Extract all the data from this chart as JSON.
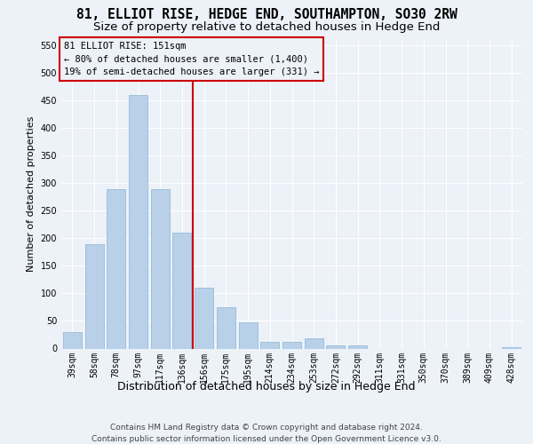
{
  "title": "81, ELLIOT RISE, HEDGE END, SOUTHAMPTON, SO30 2RW",
  "subtitle": "Size of property relative to detached houses in Hedge End",
  "xlabel": "Distribution of detached houses by size in Hedge End",
  "ylabel": "Number of detached properties",
  "categories": [
    "39sqm",
    "58sqm",
    "78sqm",
    "97sqm",
    "117sqm",
    "136sqm",
    "156sqm",
    "175sqm",
    "195sqm",
    "214sqm",
    "234sqm",
    "253sqm",
    "272sqm",
    "292sqm",
    "311sqm",
    "331sqm",
    "350sqm",
    "370sqm",
    "389sqm",
    "409sqm",
    "428sqm"
  ],
  "values": [
    30,
    190,
    290,
    460,
    290,
    210,
    110,
    75,
    47,
    12,
    12,
    18,
    5,
    5,
    0,
    0,
    0,
    0,
    0,
    0,
    2
  ],
  "bar_color": "#b8d0e8",
  "bar_edgecolor": "#89b4d4",
  "vline_x_index": 6,
  "vline_color": "#cc0000",
  "annotation_line0": "81 ELLIOT RISE: 151sqm",
  "annotation_line1": "← 80% of detached houses are smaller (1,400)",
  "annotation_line2": "19% of semi-detached houses are larger (331) →",
  "annotation_box_edgecolor": "#cc0000",
  "ylim": [
    0,
    560
  ],
  "yticks": [
    0,
    50,
    100,
    150,
    200,
    250,
    300,
    350,
    400,
    450,
    500,
    550
  ],
  "footer_line1": "Contains HM Land Registry data © Crown copyright and database right 2024.",
  "footer_line2": "Contains public sector information licensed under the Open Government Licence v3.0.",
  "bg_color": "#edf1f8",
  "grid_color": "#ffffff",
  "title_fontsize": 10.5,
  "subtitle_fontsize": 9.5,
  "ylabel_fontsize": 8,
  "xlabel_fontsize": 9,
  "tick_fontsize": 7,
  "annotation_fontsize": 7.5,
  "footer_fontsize": 6.5
}
